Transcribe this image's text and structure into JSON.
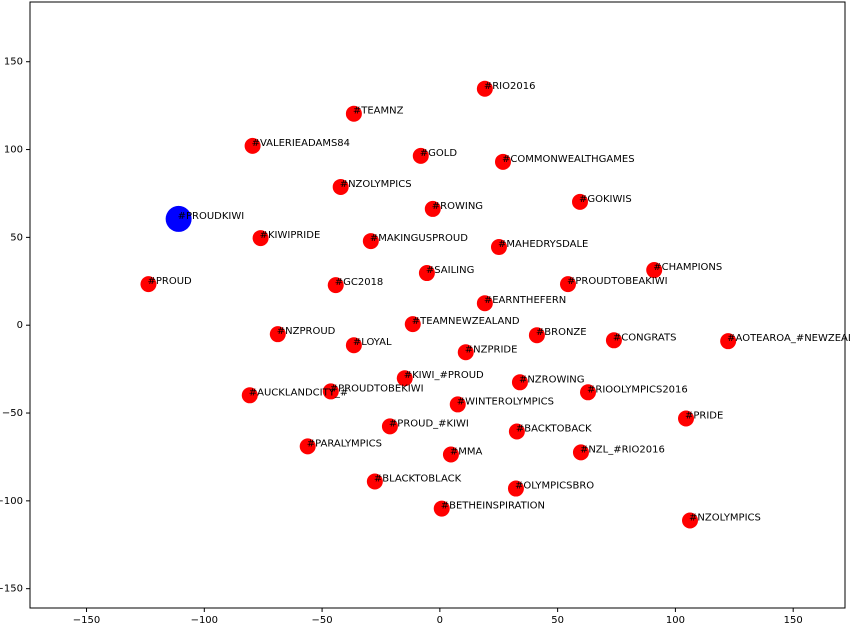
{
  "chart_data": {
    "type": "scatter",
    "xlim": [
      -174,
      172
    ],
    "ylim": [
      -161,
      184
    ],
    "xticks": [
      {
        "value": -150,
        "label": "−150"
      },
      {
        "value": -100,
        "label": "−100"
      },
      {
        "value": -50,
        "label": "−50"
      },
      0,
      50,
      100,
      150
    ],
    "yticks": [
      {
        "value": -150,
        "label": "−150"
      },
      {
        "value": -100,
        "label": "−100"
      },
      {
        "value": -50,
        "label": "−50"
      },
      0,
      50,
      100,
      150
    ],
    "series": [
      {
        "color": "#ff0000",
        "marker_size": 8,
        "labels": [
          "#RIO2016",
          "#TEAMNZ",
          "#VALERIEADAMS84",
          "#GOLD",
          "#COMMONWEALTHGAMES",
          "#NZOLYMPICS",
          "#GOKIWIS",
          "#ROWING",
          "#KIWIPRIDE",
          "#MAKINGUSPROUD",
          "#MAHEDRYSDALE",
          "#SAILING",
          "#CHAMPIONS",
          "#PROUD",
          "#GC2018",
          "#PROUDTOBEAKIWI",
          "#EARNTHEFERN",
          "#TEAMNEWZEALAND",
          "#NZPROUD",
          "#BRONZE",
          "#CONGRATS",
          "#AOTEAROA_#NEWZEALAND",
          "#LOYAL",
          "#NZPRIDE",
          "#KIWI_#PROUD",
          "#NZROWING",
          "#AUCKLANDCITY_#",
          "#PROUDTOBEKIWI",
          "#RIOOLYMPICS2016",
          "#WINTEROLYMPICS",
          "#PRIDE",
          "#PROUD_#KIWI",
          "#BACKTOBACK",
          "#PARALYMPICS",
          "#MMA",
          "#NZL_#RIO2016",
          "#BLACKTOBLACK",
          "#OLYMPICSBRO",
          "#BETHEINSPIRATION",
          "#NZOLYMPICS"
        ],
        "x": [
          19.1,
          -36.5,
          -79.5,
          -8.1,
          26.8,
          -42.1,
          59.5,
          -3.0,
          -76.1,
          -29.3,
          25.1,
          -5.5,
          91.0,
          -123.7,
          -44.2,
          54.4,
          19.1,
          -11.5,
          -68.8,
          41.2,
          73.9,
          122.4,
          -36.5,
          11.0,
          -14.9,
          34.0,
          -80.7,
          -46.3,
          62.9,
          7.6,
          104.5,
          -21.2,
          32.7,
          -56.1,
          4.7,
          59.9,
          -27.6,
          32.3,
          0.8,
          106.2
        ],
        "values": [
          134.6,
          120.4,
          102.1,
          96.4,
          93.0,
          78.7,
          70.2,
          66.2,
          49.6,
          47.9,
          44.5,
          29.7,
          31.4,
          23.4,
          22.8,
          23.4,
          12.5,
          0.6,
          -5.1,
          -5.7,
          -8.6,
          -9.1,
          -11.4,
          -15.4,
          -30.2,
          -32.5,
          -39.9,
          -37.7,
          -38.2,
          -45.1,
          -53.1,
          -57.6,
          -60.5,
          -69.0,
          -73.6,
          -72.4,
          -89.0,
          -93.0,
          -104.4,
          -111.2
        ]
      },
      {
        "color": "#0000ff",
        "marker_size": 13,
        "labels": [
          "#PROUDKIWI"
        ],
        "x": [
          -110.9
        ],
        "values": [
          60.5
        ]
      }
    ]
  }
}
